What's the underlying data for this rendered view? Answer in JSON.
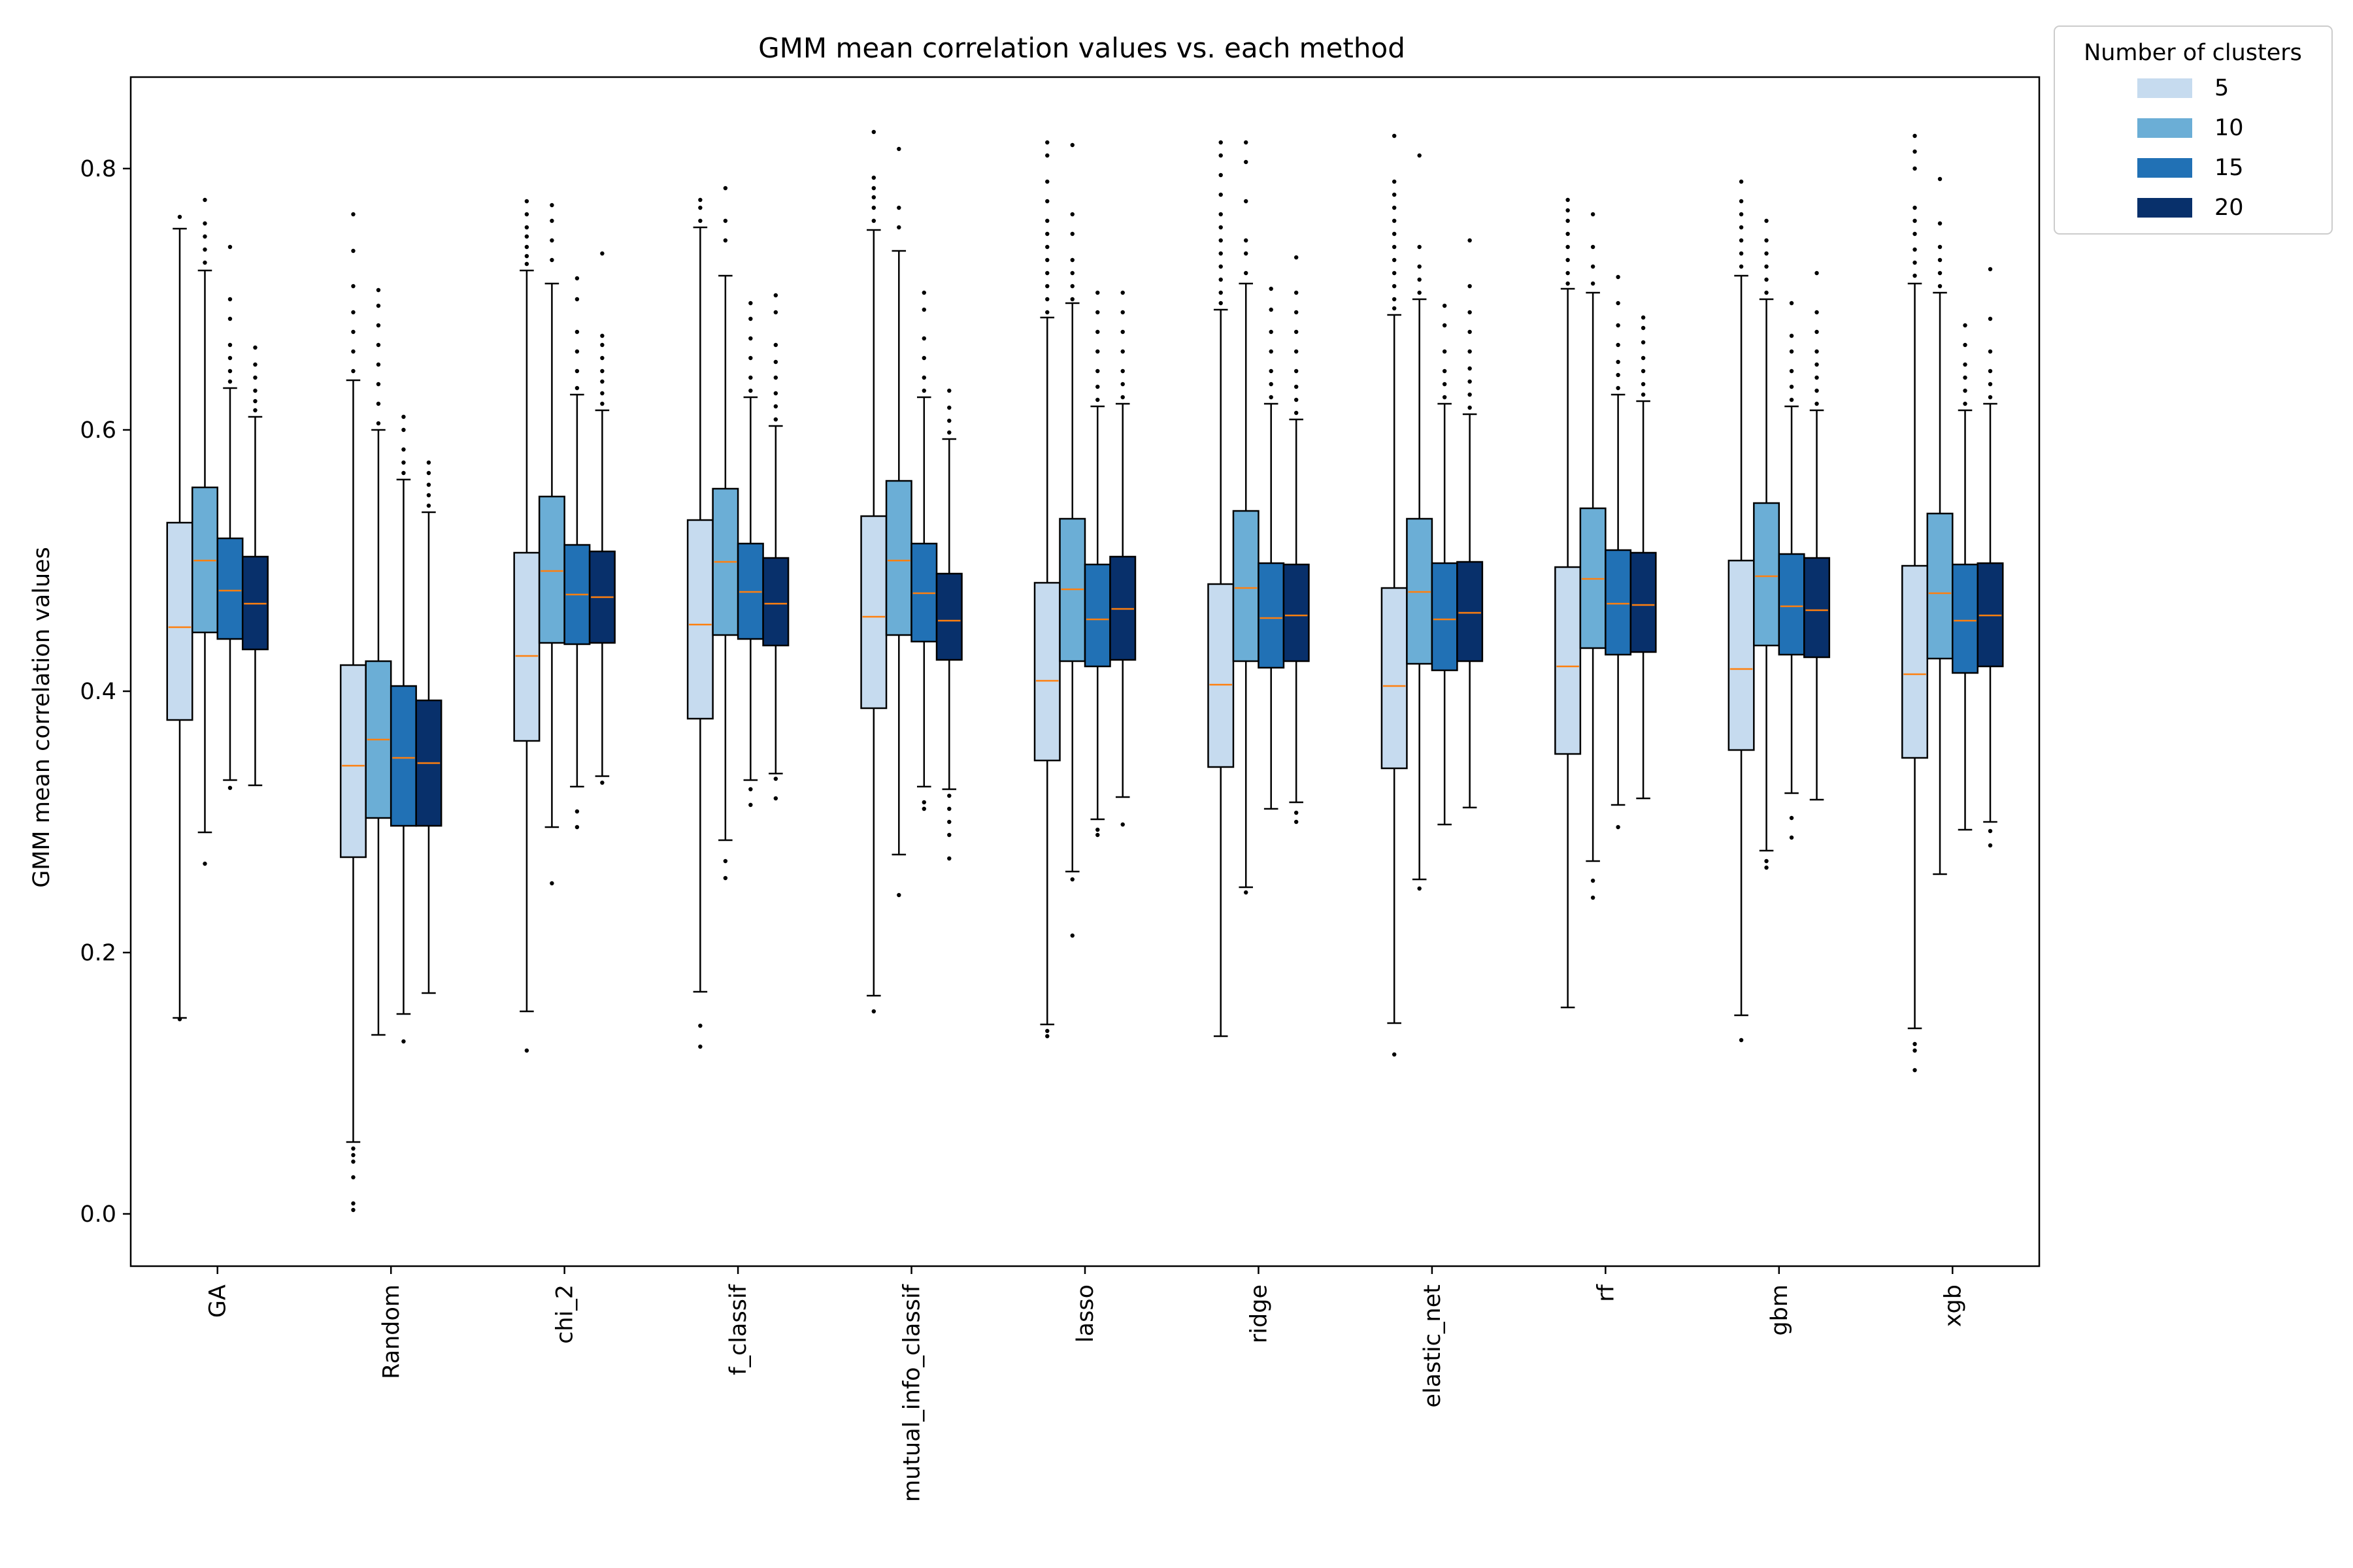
{
  "chart_data": {
    "type": "box",
    "title": "GMM mean correlation values vs. each method",
    "xlabel": "",
    "ylabel": "GMM mean correlation values",
    "ylim": [
      -0.04,
      0.87
    ],
    "yticks": [
      0.0,
      0.2,
      0.4,
      0.6,
      0.8
    ],
    "ytick_labels": [
      "0.0",
      "0.2",
      "0.4",
      "0.6",
      "0.8"
    ],
    "legend": {
      "title": "Number of clusters",
      "placement": "outside-top-right"
    },
    "categories": [
      "GA",
      "Random",
      "chi_2",
      "f_classif",
      "mutual_info_classif",
      "lasso",
      "ridge",
      "elastic_net",
      "rf",
      "gbm",
      "xgb"
    ],
    "series": [
      {
        "name": "5",
        "color": "#c6dbef",
        "boxes": [
          {
            "whislo": 0.15,
            "q1": 0.378,
            "med": 0.449,
            "q3": 0.529,
            "whishi": 0.754,
            "fliers": [
              0.149,
              0.763
            ]
          },
          {
            "whislo": 0.055,
            "q1": 0.273,
            "med": 0.343,
            "q3": 0.42,
            "whishi": 0.638,
            "fliers": [
              0.003,
              0.008,
              0.028,
              0.04,
              0.045,
              0.05,
              0.645,
              0.66,
              0.675,
              0.69,
              0.71,
              0.737,
              0.765
            ]
          },
          {
            "whislo": 0.155,
            "q1": 0.362,
            "med": 0.427,
            "q3": 0.506,
            "whishi": 0.722,
            "fliers": [
              0.125,
              0.727,
              0.733,
              0.74,
              0.748,
              0.755,
              0.765,
              0.775
            ]
          },
          {
            "whislo": 0.17,
            "q1": 0.379,
            "med": 0.451,
            "q3": 0.531,
            "whishi": 0.755,
            "fliers": [
              0.128,
              0.144,
              0.76,
              0.77,
              0.776
            ]
          },
          {
            "whislo": 0.167,
            "q1": 0.387,
            "med": 0.457,
            "q3": 0.534,
            "whishi": 0.753,
            "fliers": [
              0.155,
              0.76,
              0.77,
              0.778,
              0.785,
              0.793,
              0.828
            ]
          },
          {
            "whislo": 0.145,
            "q1": 0.347,
            "med": 0.408,
            "q3": 0.483,
            "whishi": 0.686,
            "fliers": [
              0.136,
              0.14,
              0.69,
              0.7,
              0.71,
              0.72,
              0.73,
              0.74,
              0.75,
              0.76,
              0.775,
              0.79,
              0.81,
              0.82
            ]
          },
          {
            "whislo": 0.136,
            "q1": 0.342,
            "med": 0.405,
            "q3": 0.482,
            "whishi": 0.692,
            "fliers": [
              0.697,
              0.705,
              0.715,
              0.725,
              0.735,
              0.745,
              0.755,
              0.765,
              0.78,
              0.795,
              0.81,
              0.82
            ]
          },
          {
            "whislo": 0.146,
            "q1": 0.341,
            "med": 0.404,
            "q3": 0.479,
            "whishi": 0.688,
            "fliers": [
              0.122,
              0.693,
              0.7,
              0.71,
              0.72,
              0.73,
              0.74,
              0.75,
              0.76,
              0.77,
              0.78,
              0.79,
              0.825
            ]
          },
          {
            "whislo": 0.158,
            "q1": 0.352,
            "med": 0.419,
            "q3": 0.495,
            "whishi": 0.708,
            "fliers": [
              0.712,
              0.72,
              0.73,
              0.74,
              0.75,
              0.76,
              0.768,
              0.776
            ]
          },
          {
            "whislo": 0.152,
            "q1": 0.355,
            "med": 0.417,
            "q3": 0.5,
            "whishi": 0.718,
            "fliers": [
              0.133,
              0.725,
              0.735,
              0.745,
              0.755,
              0.765,
              0.775,
              0.79
            ]
          },
          {
            "whislo": 0.142,
            "q1": 0.349,
            "med": 0.413,
            "q3": 0.496,
            "whishi": 0.712,
            "fliers": [
              0.11,
              0.125,
              0.13,
              0.718,
              0.728,
              0.738,
              0.75,
              0.76,
              0.77,
              0.8,
              0.813,
              0.825
            ]
          }
        ]
      },
      {
        "name": "10",
        "color": "#6baed6",
        "boxes": [
          {
            "whislo": 0.292,
            "q1": 0.445,
            "med": 0.5,
            "q3": 0.556,
            "whishi": 0.722,
            "fliers": [
              0.268,
              0.728,
              0.738,
              0.748,
              0.758,
              0.776
            ]
          },
          {
            "whislo": 0.137,
            "q1": 0.303,
            "med": 0.363,
            "q3": 0.423,
            "whishi": 0.6,
            "fliers": [
              0.605,
              0.62,
              0.635,
              0.65,
              0.665,
              0.68,
              0.695,
              0.707
            ]
          },
          {
            "whislo": 0.296,
            "q1": 0.437,
            "med": 0.492,
            "q3": 0.549,
            "whishi": 0.712,
            "fliers": [
              0.253,
              0.73,
              0.745,
              0.76,
              0.772
            ]
          },
          {
            "whislo": 0.286,
            "q1": 0.443,
            "med": 0.499,
            "q3": 0.555,
            "whishi": 0.718,
            "fliers": [
              0.257,
              0.27,
              0.745,
              0.76,
              0.785
            ]
          },
          {
            "whislo": 0.275,
            "q1": 0.443,
            "med": 0.5,
            "q3": 0.561,
            "whishi": 0.737,
            "fliers": [
              0.244,
              0.755,
              0.77,
              0.815
            ]
          },
          {
            "whislo": 0.262,
            "q1": 0.423,
            "med": 0.478,
            "q3": 0.532,
            "whishi": 0.697,
            "fliers": [
              0.213,
              0.256,
              0.7,
              0.71,
              0.72,
              0.73,
              0.75,
              0.765,
              0.818
            ]
          },
          {
            "whislo": 0.25,
            "q1": 0.423,
            "med": 0.479,
            "q3": 0.538,
            "whishi": 0.712,
            "fliers": [
              0.246,
              0.72,
              0.735,
              0.745,
              0.775,
              0.805,
              0.82
            ]
          },
          {
            "whislo": 0.256,
            "q1": 0.421,
            "med": 0.476,
            "q3": 0.532,
            "whishi": 0.7,
            "fliers": [
              0.249,
              0.705,
              0.715,
              0.725,
              0.74,
              0.81
            ]
          },
          {
            "whislo": 0.27,
            "q1": 0.433,
            "med": 0.486,
            "q3": 0.54,
            "whishi": 0.705,
            "fliers": [
              0.242,
              0.255,
              0.712,
              0.725,
              0.74,
              0.765
            ]
          },
          {
            "whislo": 0.278,
            "q1": 0.435,
            "med": 0.488,
            "q3": 0.544,
            "whishi": 0.7,
            "fliers": [
              0.265,
              0.27,
              0.705,
              0.715,
              0.725,
              0.735,
              0.745,
              0.76
            ]
          },
          {
            "whislo": 0.26,
            "q1": 0.425,
            "med": 0.475,
            "q3": 0.536,
            "whishi": 0.705,
            "fliers": [
              0.71,
              0.72,
              0.73,
              0.74,
              0.758,
              0.792
            ]
          }
        ]
      },
      {
        "name": "15",
        "color": "#2171b5",
        "boxes": [
          {
            "whislo": 0.332,
            "q1": 0.44,
            "med": 0.477,
            "q3": 0.517,
            "whishi": 0.632,
            "fliers": [
              0.326,
              0.637,
              0.645,
              0.655,
              0.665,
              0.685,
              0.7,
              0.74
            ]
          },
          {
            "whislo": 0.153,
            "q1": 0.297,
            "med": 0.349,
            "q3": 0.404,
            "whishi": 0.562,
            "fliers": [
              0.132,
              0.567,
              0.575,
              0.585,
              0.6,
              0.61
            ]
          },
          {
            "whislo": 0.327,
            "q1": 0.436,
            "med": 0.474,
            "q3": 0.512,
            "whishi": 0.627,
            "fliers": [
              0.296,
              0.308,
              0.632,
              0.645,
              0.66,
              0.675,
              0.7,
              0.716
            ]
          },
          {
            "whislo": 0.332,
            "q1": 0.44,
            "med": 0.476,
            "q3": 0.513,
            "whishi": 0.625,
            "fliers": [
              0.313,
              0.325,
              0.63,
              0.64,
              0.655,
              0.67,
              0.685,
              0.697
            ]
          },
          {
            "whislo": 0.327,
            "q1": 0.438,
            "med": 0.475,
            "q3": 0.513,
            "whishi": 0.625,
            "fliers": [
              0.31,
              0.315,
              0.63,
              0.64,
              0.655,
              0.67,
              0.692,
              0.705
            ]
          },
          {
            "whislo": 0.302,
            "q1": 0.419,
            "med": 0.455,
            "q3": 0.497,
            "whishi": 0.618,
            "fliers": [
              0.29,
              0.294,
              0.623,
              0.633,
              0.645,
              0.66,
              0.675,
              0.69,
              0.705
            ]
          },
          {
            "whislo": 0.31,
            "q1": 0.418,
            "med": 0.456,
            "q3": 0.498,
            "whishi": 0.62,
            "fliers": [
              0.625,
              0.635,
              0.645,
              0.66,
              0.675,
              0.692,
              0.708
            ]
          },
          {
            "whislo": 0.298,
            "q1": 0.416,
            "med": 0.455,
            "q3": 0.498,
            "whishi": 0.62,
            "fliers": [
              0.625,
              0.635,
              0.645,
              0.66,
              0.68,
              0.695
            ]
          },
          {
            "whislo": 0.313,
            "q1": 0.428,
            "med": 0.467,
            "q3": 0.508,
            "whishi": 0.627,
            "fliers": [
              0.296,
              0.632,
              0.642,
              0.652,
              0.665,
              0.68,
              0.697,
              0.717
            ]
          },
          {
            "whislo": 0.322,
            "q1": 0.428,
            "med": 0.465,
            "q3": 0.505,
            "whishi": 0.618,
            "fliers": [
              0.288,
              0.303,
              0.623,
              0.633,
              0.645,
              0.66,
              0.672,
              0.697
            ]
          },
          {
            "whislo": 0.294,
            "q1": 0.414,
            "med": 0.454,
            "q3": 0.497,
            "whishi": 0.615,
            "fliers": [
              0.62,
              0.63,
              0.64,
              0.65,
              0.665,
              0.68
            ]
          }
        ]
      },
      {
        "name": "20",
        "color": "#08306b",
        "boxes": [
          {
            "whislo": 0.328,
            "q1": 0.432,
            "med": 0.467,
            "q3": 0.503,
            "whishi": 0.61,
            "fliers": [
              0.615,
              0.622,
              0.63,
              0.64,
              0.65,
              0.663
            ]
          },
          {
            "whislo": 0.169,
            "q1": 0.297,
            "med": 0.345,
            "q3": 0.393,
            "whishi": 0.537,
            "fliers": [
              0.542,
              0.55,
              0.558,
              0.567,
              0.575
            ]
          },
          {
            "whislo": 0.335,
            "q1": 0.437,
            "med": 0.472,
            "q3": 0.507,
            "whishi": 0.615,
            "fliers": [
              0.33,
              0.62,
              0.628,
              0.637,
              0.645,
              0.655,
              0.665,
              0.672,
              0.735
            ]
          },
          {
            "whislo": 0.337,
            "q1": 0.435,
            "med": 0.467,
            "q3": 0.502,
            "whishi": 0.603,
            "fliers": [
              0.318,
              0.333,
              0.608,
              0.618,
              0.628,
              0.64,
              0.652,
              0.665,
              0.69,
              0.703
            ]
          },
          {
            "whislo": 0.325,
            "q1": 0.424,
            "med": 0.454,
            "q3": 0.49,
            "whishi": 0.593,
            "fliers": [
              0.272,
              0.29,
              0.3,
              0.31,
              0.32,
              0.598,
              0.607,
              0.617,
              0.63
            ]
          },
          {
            "whislo": 0.319,
            "q1": 0.424,
            "med": 0.463,
            "q3": 0.503,
            "whishi": 0.62,
            "fliers": [
              0.298,
              0.625,
              0.635,
              0.645,
              0.66,
              0.675,
              0.69,
              0.705
            ]
          },
          {
            "whislo": 0.315,
            "q1": 0.423,
            "med": 0.458,
            "q3": 0.497,
            "whishi": 0.608,
            "fliers": [
              0.3,
              0.307,
              0.613,
              0.623,
              0.633,
              0.645,
              0.66,
              0.675,
              0.69,
              0.705,
              0.732
            ]
          },
          {
            "whislo": 0.311,
            "q1": 0.423,
            "med": 0.46,
            "q3": 0.499,
            "whishi": 0.612,
            "fliers": [
              0.617,
              0.627,
              0.637,
              0.647,
              0.66,
              0.675,
              0.69,
              0.71,
              0.745
            ]
          },
          {
            "whislo": 0.318,
            "q1": 0.43,
            "med": 0.466,
            "q3": 0.506,
            "whishi": 0.622,
            "fliers": [
              0.627,
              0.635,
              0.645,
              0.655,
              0.667,
              0.678,
              0.686
            ]
          },
          {
            "whislo": 0.317,
            "q1": 0.426,
            "med": 0.462,
            "q3": 0.502,
            "whishi": 0.615,
            "fliers": [
              0.62,
              0.63,
              0.64,
              0.65,
              0.66,
              0.675,
              0.69,
              0.72
            ]
          },
          {
            "whislo": 0.3,
            "q1": 0.419,
            "med": 0.458,
            "q3": 0.498,
            "whishi": 0.62,
            "fliers": [
              0.282,
              0.293,
              0.625,
              0.635,
              0.645,
              0.66,
              0.685,
              0.723
            ]
          }
        ]
      }
    ]
  }
}
